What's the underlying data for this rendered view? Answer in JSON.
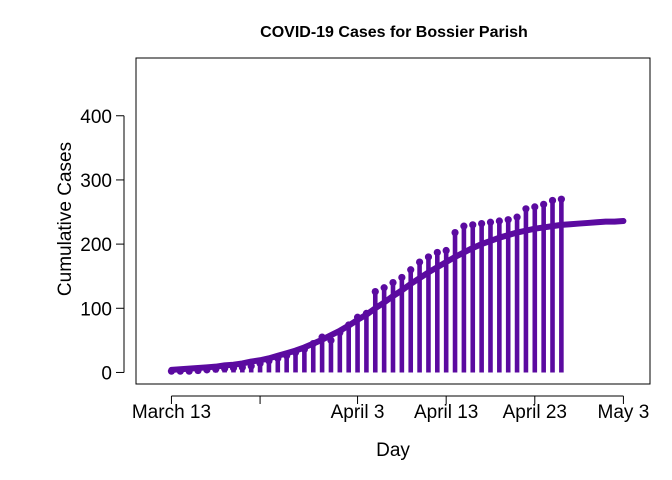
{
  "chart_data": {
    "type": "bar",
    "title": "COVID-19 Cases for Bossier Parish",
    "xlabel": "Day",
    "ylabel": "Cumulative Cases",
    "ylim": [
      -18,
      490
    ],
    "xlim": [
      -4,
      54
    ],
    "y_ticks": [
      0,
      100,
      200,
      300,
      400
    ],
    "x_ticks": [
      {
        "day": 0,
        "label": "March 13"
      },
      {
        "day": 10,
        "label": ""
      },
      {
        "day": 21,
        "label": "April 3"
      },
      {
        "day": 31,
        "label": "April 13"
      },
      {
        "day": 41,
        "label": "April 23"
      },
      {
        "day": 51,
        "label": "May 3"
      }
    ],
    "bar_color": "#5b0aa0",
    "series": [
      {
        "kind": "observed",
        "x": [
          0,
          1,
          2,
          3,
          4,
          5,
          6,
          7,
          8,
          9,
          10,
          11,
          12,
          13,
          14,
          15,
          16,
          17,
          18,
          19,
          20,
          21,
          22,
          23,
          24,
          25,
          26,
          27,
          28,
          29,
          30,
          31,
          32,
          33,
          34,
          35,
          36,
          37,
          38,
          39,
          40,
          41,
          42,
          43,
          44
        ],
        "values": [
          2,
          2,
          2,
          3,
          4,
          5,
          6,
          7,
          8,
          10,
          14,
          18,
          22,
          26,
          31,
          36,
          45,
          55,
          50,
          62,
          74,
          86,
          92,
          126,
          132,
          140,
          148,
          160,
          172,
          180,
          187,
          190,
          218,
          228,
          230,
          232,
          234,
          236,
          238,
          242,
          255,
          258,
          262,
          268,
          270
        ]
      },
      {
        "kind": "fitted",
        "x_start": 0,
        "x_end": 51,
        "values": [
          4,
          5,
          6,
          7,
          8,
          9,
          11,
          12,
          14,
          17,
          19,
          22,
          26,
          30,
          34,
          39,
          45,
          51,
          58,
          65,
          73,
          82,
          90,
          100,
          109,
          119,
          128,
          138,
          147,
          156,
          164,
          172,
          180,
          187,
          194,
          200,
          205,
          210,
          214,
          218,
          221,
          224,
          226,
          228,
          230,
          231,
          232,
          233,
          234,
          235,
          235,
          236
        ]
      }
    ]
  }
}
